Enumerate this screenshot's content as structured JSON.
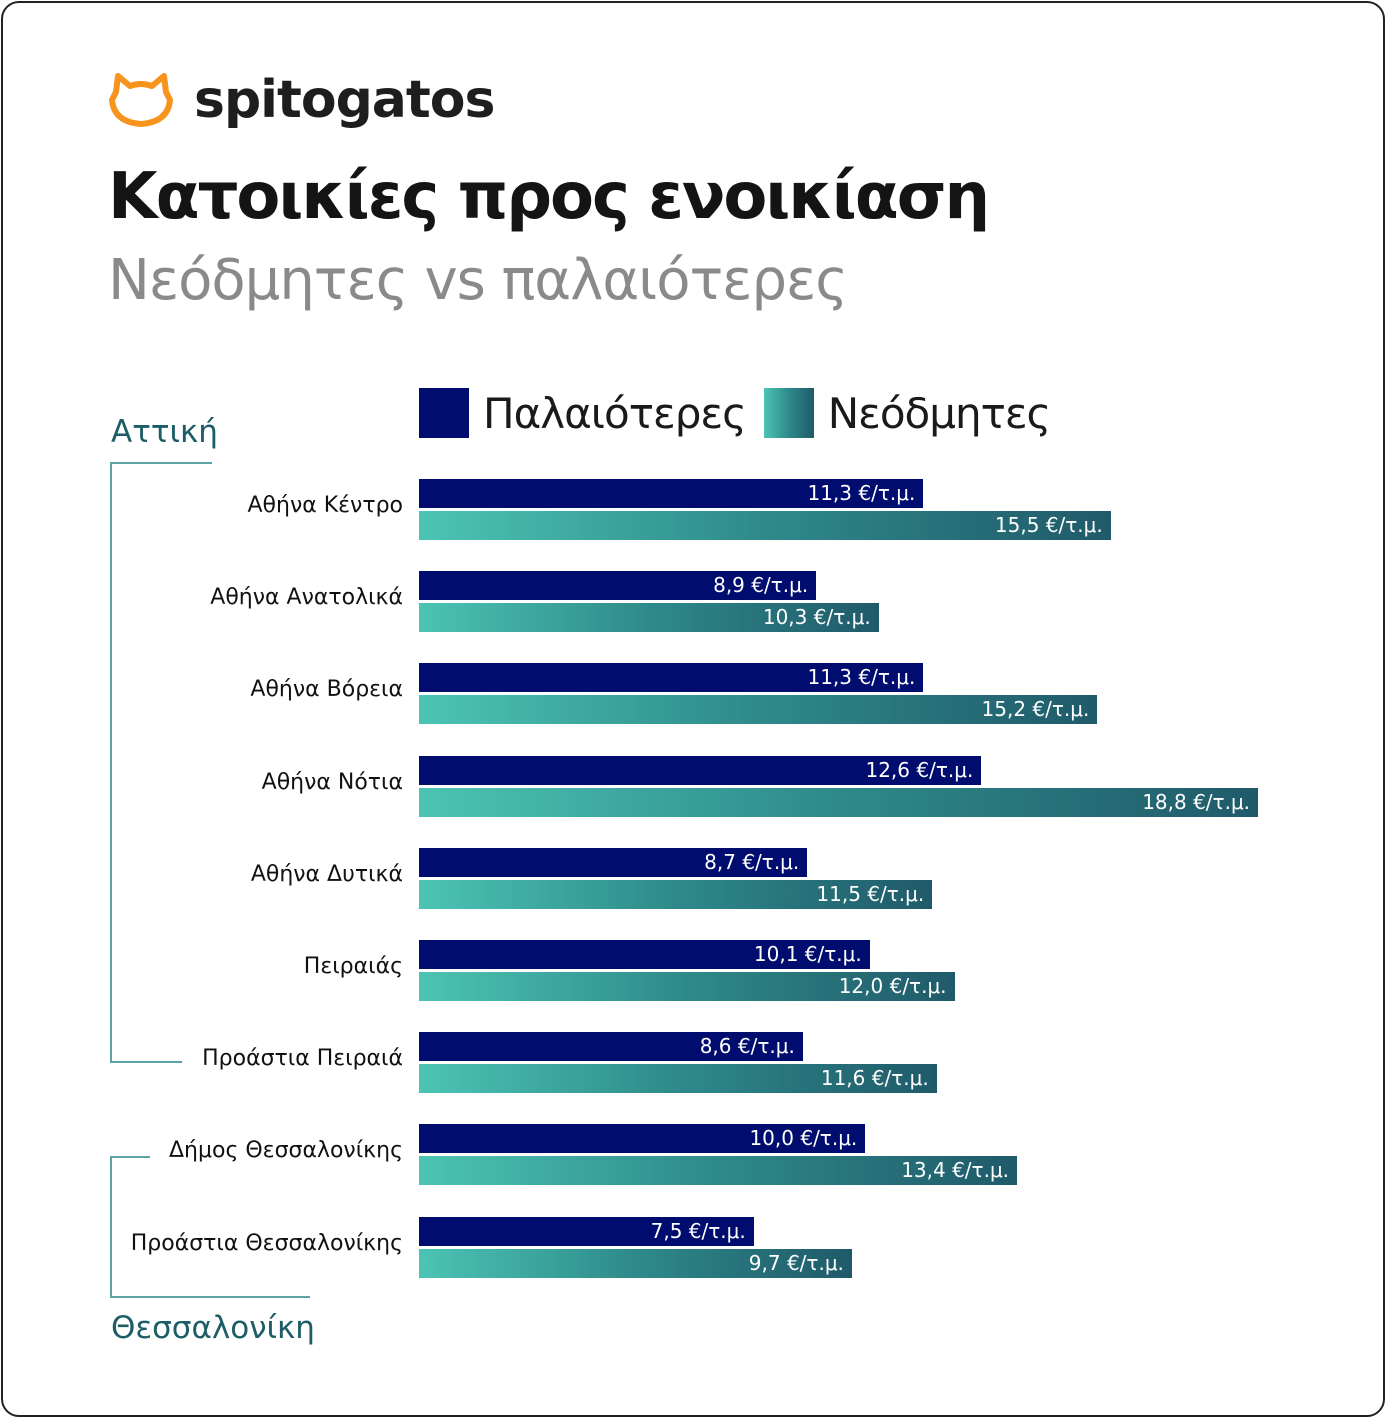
{
  "brand": {
    "name": "spitogatos",
    "logo_color": "#f7941d"
  },
  "title": "Κατοικίες προς ενοικίαση",
  "subtitle": "Νεόδμητες vs παλαιότερες",
  "chart_data": {
    "type": "bar",
    "orientation": "horizontal",
    "title": "Κατοικίες προς ενοικίαση",
    "subtitle": "Νεόδμητες vs παλαιότερες",
    "legend_position": "top",
    "groups": [
      {
        "name": "Αττική",
        "from": 0,
        "to": 6
      },
      {
        "name": "Θεσσαλονίκη",
        "from": 7,
        "to": 8
      }
    ],
    "categories": [
      "Αθήνα Κέντρο",
      "Αθήνα Ανατολικά",
      "Αθήνα Βόρεια",
      "Αθήνα Νότια",
      "Αθήνα Δυτικά",
      "Πειραιάς",
      "Προάστια Πειραιά",
      "Δήμος Θεσσαλονίκης",
      "Προάστια Θεσσαλονίκης"
    ],
    "series": [
      {
        "name": "Παλαιότερες",
        "color": "#000c6e",
        "values": [
          11.3,
          8.9,
          11.3,
          12.6,
          8.7,
          10.1,
          8.6,
          10.0,
          7.5
        ],
        "labels": [
          "11,3 €/τ.μ.",
          "8,9 €/τ.μ.",
          "11,3 €/τ.μ.",
          "12,6 €/τ.μ.",
          "8,7 €/τ.μ.",
          "10,1 €/τ.μ.",
          "8,6 €/τ.μ.",
          "10,0 €/τ.μ.",
          "7,5 €/τ.μ."
        ]
      },
      {
        "name": "Νεόδμητες",
        "color": "#2e8a8a",
        "values": [
          15.5,
          10.3,
          15.2,
          18.8,
          11.5,
          12.0,
          11.6,
          13.4,
          9.7
        ],
        "labels": [
          "15,5 €/τ.μ.",
          "10,3 €/τ.μ.",
          "15,2 €/τ.μ.",
          "18,8 €/τ.μ.",
          "11,5 €/τ.μ.",
          "12,0 €/τ.μ.",
          "11,6 €/τ.μ.",
          "13,4 €/τ.μ.",
          "9,7 €/τ.μ."
        ]
      }
    ],
    "unit": "€/τ.μ.",
    "grid": false
  }
}
